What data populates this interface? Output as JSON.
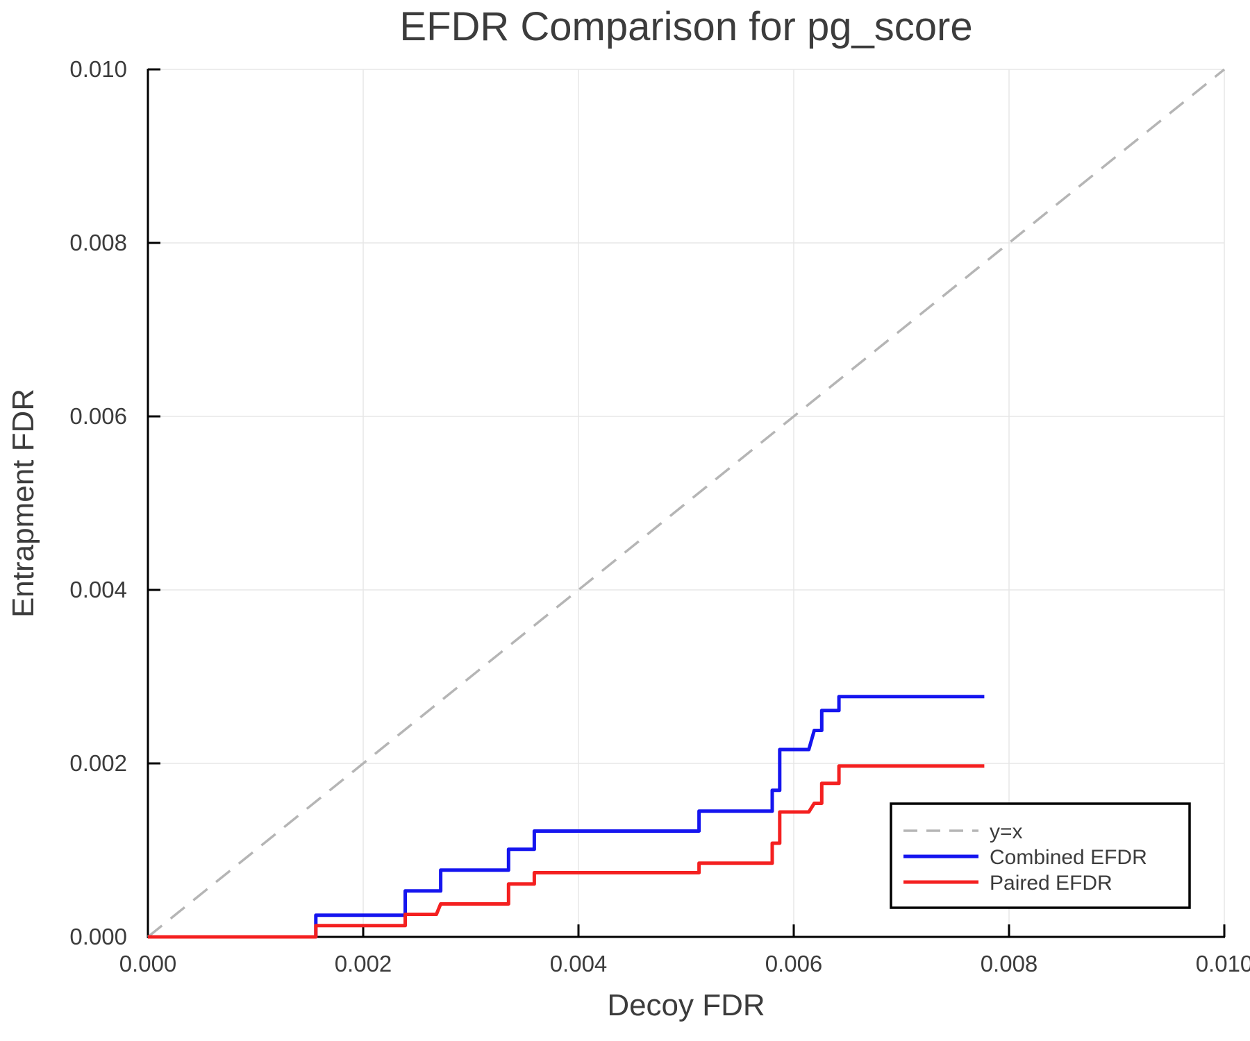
{
  "title": "EFDR Comparison for pg_score",
  "colors": {
    "text": "#3c3c3c",
    "axis": "#000000",
    "grid": "#e7e7e7",
    "identity_line": "#b5b5b5",
    "combined_efdr": "#1515ef",
    "paired_efdr": "#f42020",
    "legend_border": "#000000",
    "background": "#ffffff"
  },
  "chart_data": {
    "type": "line",
    "title": "EFDR Comparison for pg_score",
    "xlabel": "Decoy FDR",
    "ylabel": "Entrapment FDR",
    "xlim": [
      0.0,
      0.01
    ],
    "ylim": [
      0.0,
      0.01
    ],
    "xticks": [
      0.0,
      0.002,
      0.004,
      0.006,
      0.008,
      0.01
    ],
    "yticks": [
      0.0,
      0.002,
      0.004,
      0.006,
      0.008,
      0.01
    ],
    "xtick_labels": [
      "0.000",
      "0.002",
      "0.004",
      "0.006",
      "0.008",
      "0.010"
    ],
    "ytick_labels": [
      "0.000",
      "0.002",
      "0.004",
      "0.006",
      "0.008",
      "0.010"
    ],
    "grid": true,
    "legend_position": "bottom-right",
    "series": [
      {
        "name": "y=x",
        "style": "dashed",
        "color": "#b5b5b5",
        "width": 3.5,
        "points": [
          [
            0.0,
            0.0
          ],
          [
            0.01,
            0.01
          ]
        ]
      },
      {
        "name": "Combined EFDR",
        "style": "solid",
        "color": "#1515ef",
        "width": 5,
        "points": [
          [
            0.0,
            0.0
          ],
          [
            0.00156,
            0.0
          ],
          [
            0.00156,
            0.00025
          ],
          [
            0.00239,
            0.00025
          ],
          [
            0.00239,
            0.00053
          ],
          [
            0.00272,
            0.00053
          ],
          [
            0.00272,
            0.00077
          ],
          [
            0.00335,
            0.00077
          ],
          [
            0.00335,
            0.00101
          ],
          [
            0.00359,
            0.00101
          ],
          [
            0.00359,
            0.00122
          ],
          [
            0.00512,
            0.00122
          ],
          [
            0.00512,
            0.00145
          ],
          [
            0.0058,
            0.00145
          ],
          [
            0.0058,
            0.00169
          ],
          [
            0.00587,
            0.00169
          ],
          [
            0.00587,
            0.00216
          ],
          [
            0.00614,
            0.00216
          ],
          [
            0.00619,
            0.00238
          ],
          [
            0.00626,
            0.00238
          ],
          [
            0.00626,
            0.00261
          ],
          [
            0.00642,
            0.00261
          ],
          [
            0.00642,
            0.00277
          ],
          [
            0.00777,
            0.00277
          ]
        ]
      },
      {
        "name": "Paired EFDR",
        "style": "solid",
        "color": "#f42020",
        "width": 5,
        "points": [
          [
            0.0,
            0.0
          ],
          [
            0.00156,
            0.0
          ],
          [
            0.00156,
            0.00013
          ],
          [
            0.00239,
            0.00013
          ],
          [
            0.00239,
            0.00026
          ],
          [
            0.00268,
            0.00026
          ],
          [
            0.00272,
            0.00038
          ],
          [
            0.00335,
            0.00038
          ],
          [
            0.00335,
            0.00061
          ],
          [
            0.00359,
            0.00061
          ],
          [
            0.00359,
            0.00074
          ],
          [
            0.00512,
            0.00074
          ],
          [
            0.00512,
            0.00085
          ],
          [
            0.0058,
            0.00085
          ],
          [
            0.0058,
            0.00108
          ],
          [
            0.00587,
            0.00108
          ],
          [
            0.00587,
            0.00144
          ],
          [
            0.00614,
            0.00144
          ],
          [
            0.00619,
            0.00154
          ],
          [
            0.00626,
            0.00154
          ],
          [
            0.00626,
            0.00177
          ],
          [
            0.00642,
            0.00177
          ],
          [
            0.00642,
            0.00197
          ],
          [
            0.00777,
            0.00197
          ]
        ]
      }
    ]
  }
}
